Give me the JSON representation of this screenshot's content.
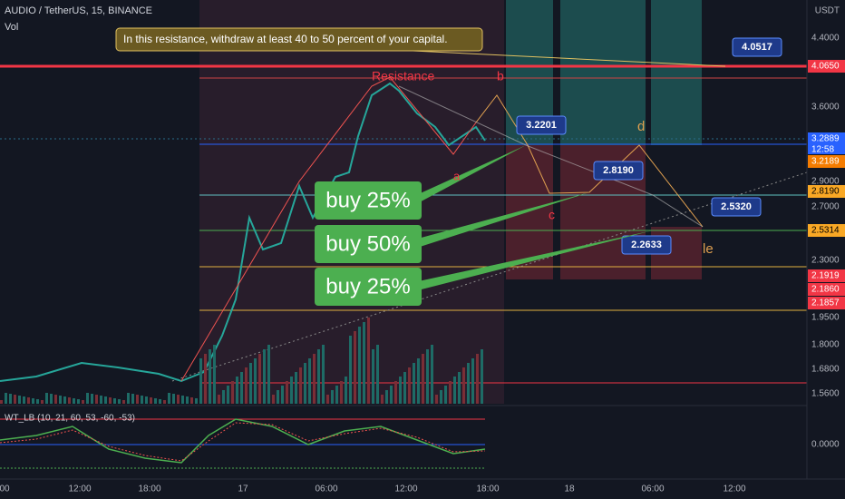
{
  "header": {
    "symbol": "AUDIO / TetherUS, 15, BINANCE",
    "volume": "Vol",
    "indicator": "WT_LB (10, 21, 60, 53, -60, -53)",
    "currency": "USDT"
  },
  "price_axis": [
    "4.4000",
    "4.0650",
    "3.6000",
    "3.2889",
    "3.2189",
    "2.9000",
    "2.8190",
    "2.7000",
    "2.5314",
    "2.3000",
    "2.1919",
    "2.1860",
    "2.1857",
    "1.9500",
    "1.8000",
    "1.6800",
    "1.5600",
    "0.0000"
  ],
  "countdown": "12:58",
  "time_axis": [
    "00",
    "12:00",
    "18:00",
    "17",
    "06:00",
    "12:00",
    "18:00",
    "18",
    "06:00",
    "12:00"
  ],
  "callout": "In this resistance, withdraw at least 40 to 50 percent of your capital.",
  "price_labels": [
    "4.0517",
    "3.2201",
    "2.8190",
    "2.5320",
    "2.2633"
  ],
  "buy_labels": [
    "buy 25%",
    "buy 50%",
    "buy 25%"
  ],
  "chart_labels": [
    "Resistance",
    "b",
    "a",
    "c",
    "d",
    "le"
  ]
}
